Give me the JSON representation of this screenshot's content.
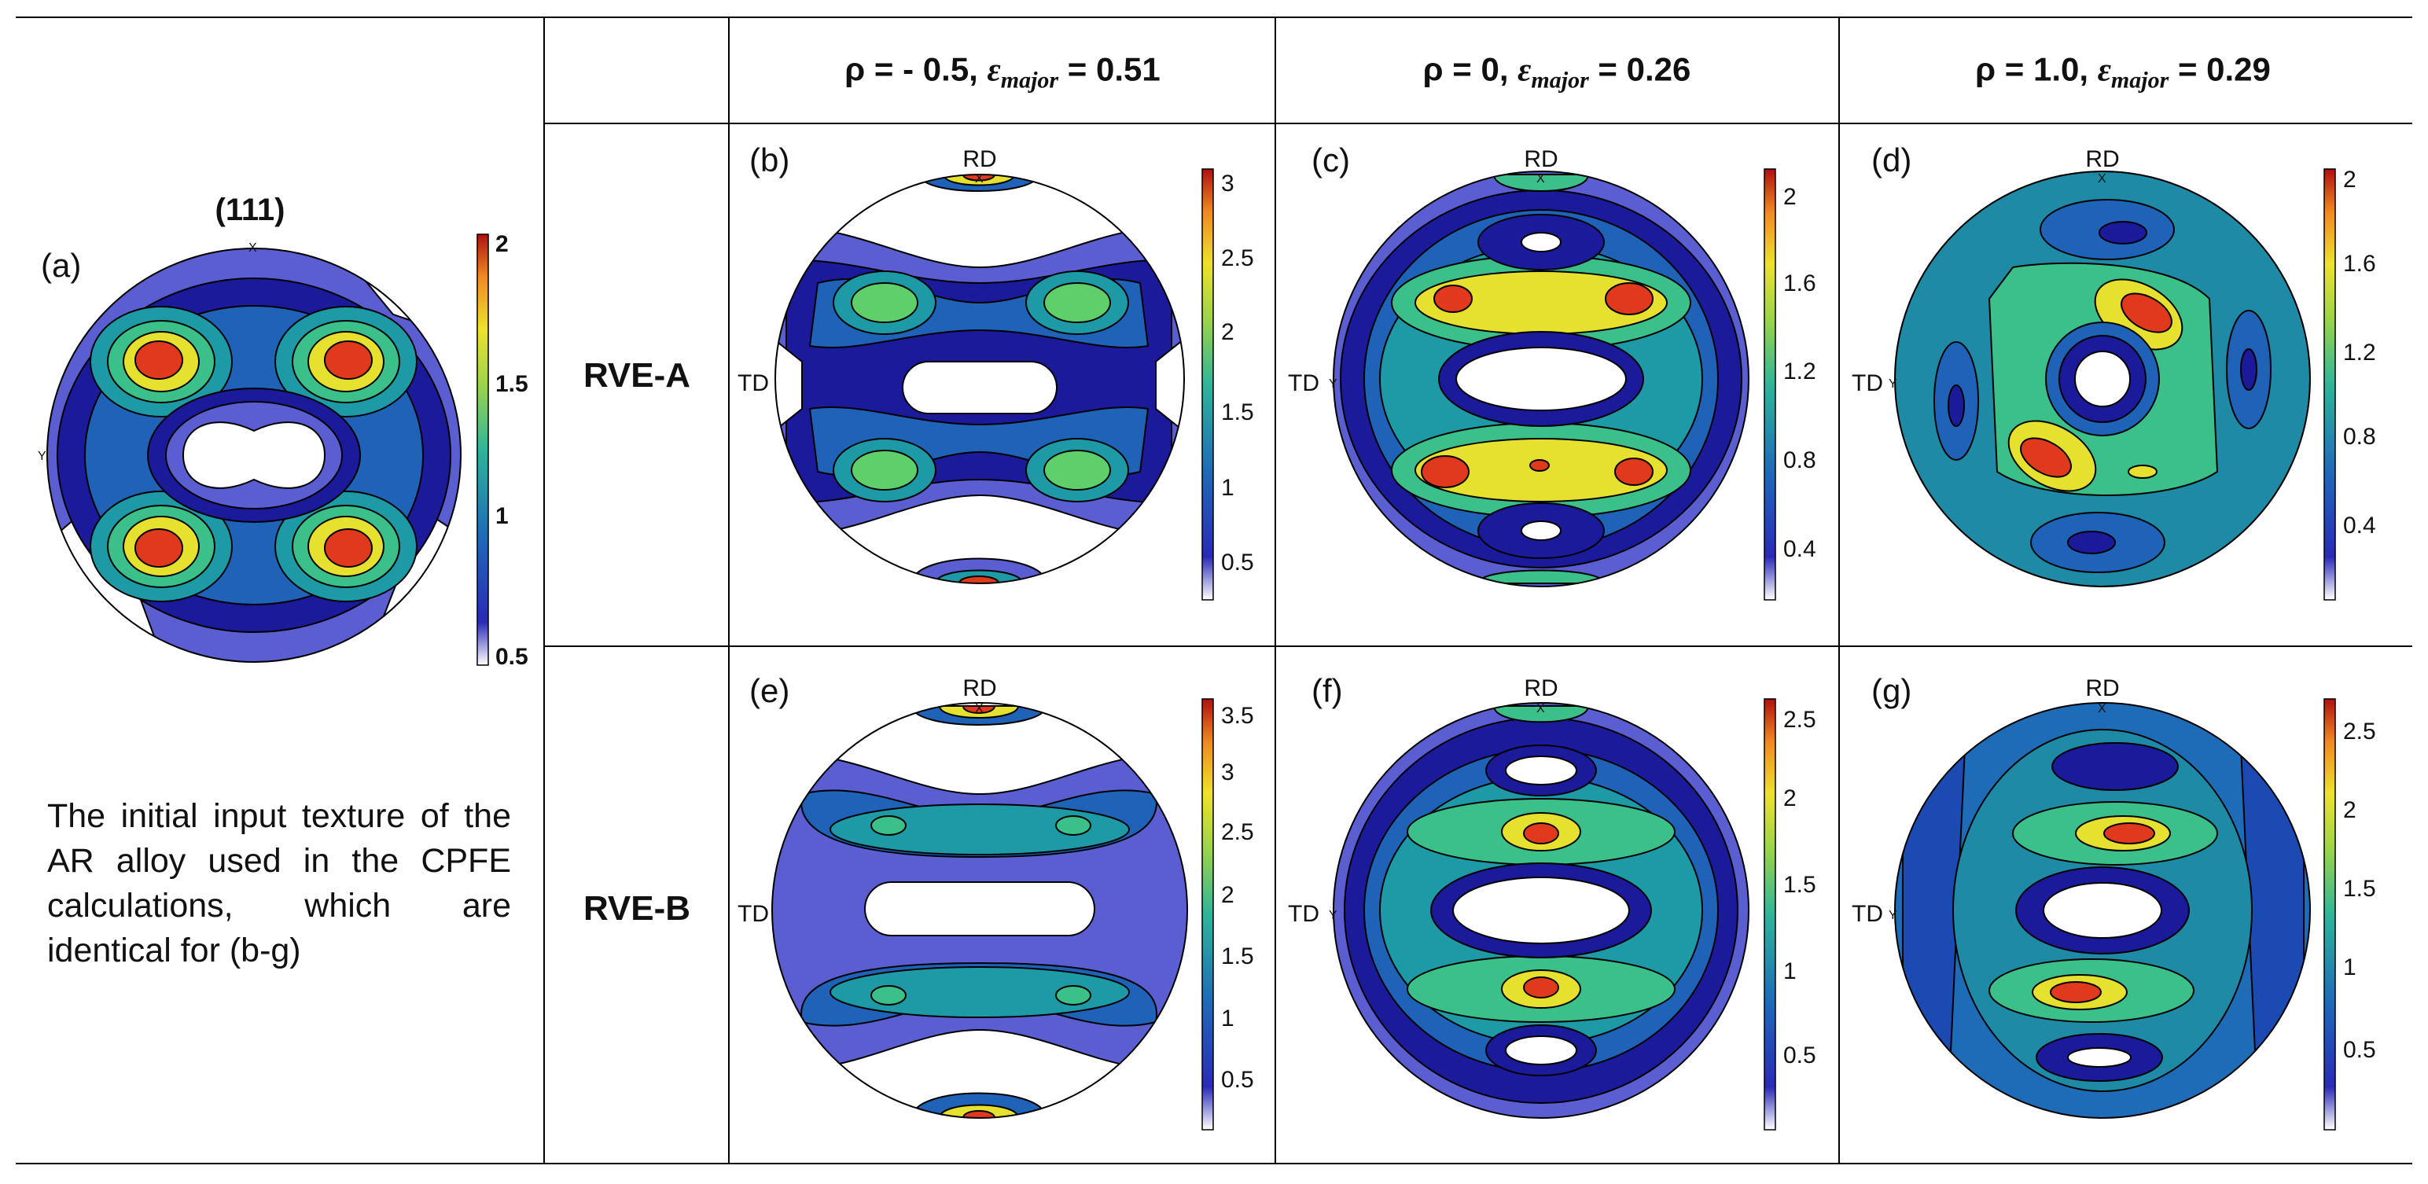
{
  "column_headers": [
    "ρ = - 0.5, ",
    "ρ = 0, ",
    "ρ = 1.0, "
  ],
  "epsilon_symbol": "ε",
  "epsilon_subscript": "major",
  "column_strain_values": [
    " = 0.51",
    " = 0.26",
    " = 0.29"
  ],
  "row_labels": [
    "RVE-A",
    "RVE-B"
  ],
  "caption": "The initial input texture of the AR alloy used in the CPFE calculations, which are identical for (b-g)",
  "pole_figure_label": "(111)",
  "axis_labels": {
    "rd": "RD",
    "td": "TD",
    "x": "X",
    "y": "Y"
  },
  "panels": [
    {
      "label": "(a)",
      "cbar_ticks": [
        "2",
        "1.5",
        "1",
        "0.5"
      ]
    },
    {
      "label": "(b)",
      "cbar_ticks": [
        "3",
        "2.5",
        "2",
        "1.5",
        "1",
        "0.5"
      ]
    },
    {
      "label": "(c)",
      "cbar_ticks": [
        "2",
        "1.6",
        "1.2",
        "0.8",
        "0.4"
      ]
    },
    {
      "label": "(d)",
      "cbar_ticks": [
        "2",
        "1.6",
        "1.2",
        "0.8",
        "0.4"
      ]
    },
    {
      "label": "(e)",
      "cbar_ticks": [
        "3.5",
        "3",
        "2.5",
        "2",
        "1.5",
        "1",
        "0.5"
      ]
    },
    {
      "label": "(f)",
      "cbar_ticks": [
        "2.5",
        "2",
        "1.5",
        "1",
        "0.5"
      ]
    },
    {
      "label": "(g)",
      "cbar_ticks": [
        "2.5",
        "2",
        "1.5",
        "1",
        "0.5"
      ]
    }
  ],
  "colors": {
    "white": "#ffffff",
    "navy": "#1a1a9a",
    "blue": "#1f3fb2",
    "mid_blue": "#1d63b8",
    "steel": "#1e82a6",
    "teal": "#1ea59a",
    "seafoam": "#3cc08a",
    "green": "#8dd24c",
    "yellow": "#e6e12e",
    "orange": "#f59a22",
    "red": "#e0391d",
    "outline": "#000000",
    "periwinkle": "#5a5ed0"
  }
}
